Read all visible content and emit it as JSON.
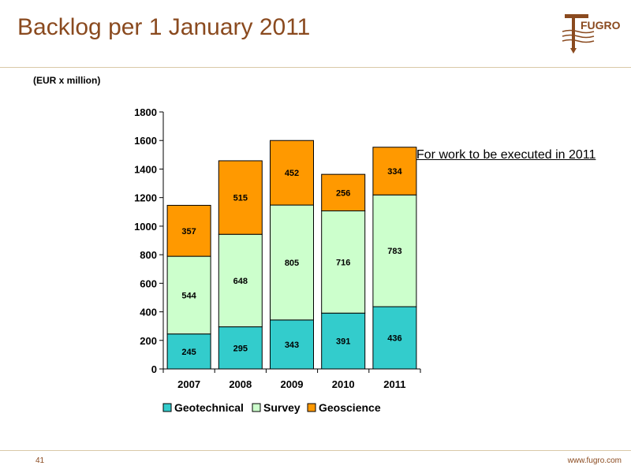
{
  "slide": {
    "title": "Backlog per 1 January 2011",
    "page_number": "41",
    "url": "www.fugro.com",
    "logo_text": "FUGRO",
    "accent_color": "#8a4a1f"
  },
  "chart_data": {
    "type": "bar",
    "stacked": true,
    "unit_label": "(EUR x million)",
    "annotation": "For work to be executed in 2011",
    "categories": [
      "2007",
      "2008",
      "2009",
      "2010",
      "2011"
    ],
    "series": [
      {
        "name": "Geotechnical",
        "color": "#33cccc",
        "values": [
          245,
          295,
          343,
          391,
          436
        ]
      },
      {
        "name": "Survey",
        "color": "#ccffcc",
        "values": [
          544,
          648,
          805,
          716,
          783
        ]
      },
      {
        "name": "Geoscience",
        "color": "#ff9900",
        "values": [
          357,
          515,
          452,
          256,
          334
        ]
      }
    ],
    "ylim": [
      0,
      1800
    ],
    "yticks": [
      "0",
      "200",
      "400",
      "600",
      "800",
      "1000",
      "1200",
      "1400",
      "1600",
      "1800"
    ],
    "grid": false,
    "legend_position": "bottom"
  }
}
